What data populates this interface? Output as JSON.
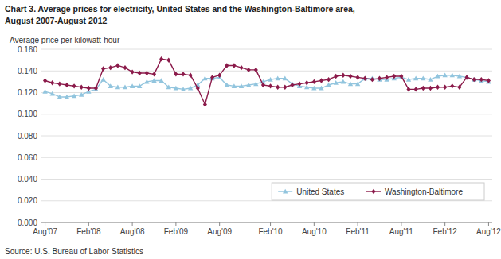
{
  "chart_data": {
    "type": "line",
    "title": "Chart 3. Average prices for electricity, United States and the Washington-Baltimore area,",
    "subtitle": "August 2007-August 2012",
    "y_label": "Average price per kilowatt-hour",
    "source": "Source: U.S. Bureau of Labor Statistics",
    "categories": [
      "Aug'07",
      null,
      null,
      null,
      null,
      null,
      "Feb'08",
      null,
      null,
      null,
      null,
      null,
      "Aug'08",
      null,
      null,
      null,
      null,
      null,
      "Feb'09",
      null,
      null,
      null,
      null,
      null,
      "Aug'09",
      null,
      null,
      null,
      null,
      null,
      null,
      "Feb'10",
      null,
      null,
      null,
      null,
      null,
      "Aug'10",
      null,
      null,
      null,
      null,
      null,
      "Feb'11",
      null,
      null,
      null,
      null,
      null,
      "Aug'11",
      null,
      null,
      null,
      null,
      null,
      "Feb'12",
      null,
      null,
      null,
      null,
      null,
      "Aug'12"
    ],
    "series": [
      {
        "name": "United States",
        "color": "#92c5de",
        "marker": "triangle",
        "values": [
          0.121,
          0.119,
          0.116,
          0.116,
          0.117,
          0.118,
          0.121,
          0.123,
          0.132,
          0.126,
          0.125,
          0.125,
          0.126,
          0.126,
          0.13,
          0.131,
          0.131,
          0.125,
          0.124,
          0.123,
          0.124,
          0.127,
          0.133,
          0.133,
          0.134,
          0.127,
          0.126,
          0.126,
          0.127,
          0.128,
          0.13,
          0.132,
          0.133,
          0.133,
          0.128,
          0.126,
          0.125,
          0.124,
          0.124,
          0.127,
          0.129,
          0.13,
          0.128,
          0.128,
          0.133,
          0.133,
          0.132,
          0.132,
          0.133,
          0.134,
          0.132,
          0.133,
          0.133,
          0.132,
          0.135,
          0.136,
          0.136,
          0.135,
          0.134,
          0.132,
          0.131,
          0.13
        ]
      },
      {
        "name": "Washington-Baltimore",
        "color": "#8b1a4a",
        "marker": "diamond",
        "values": [
          0.131,
          0.129,
          0.128,
          0.127,
          0.126,
          0.125,
          0.124,
          0.124,
          0.142,
          0.143,
          0.145,
          0.143,
          0.139,
          0.138,
          0.138,
          0.137,
          0.151,
          0.15,
          0.137,
          0.137,
          0.136,
          0.124,
          0.109,
          0.134,
          0.136,
          0.145,
          0.145,
          0.143,
          0.141,
          0.141,
          0.127,
          0.126,
          0.125,
          0.125,
          0.127,
          0.128,
          0.129,
          0.13,
          0.131,
          0.132,
          0.135,
          0.136,
          0.135,
          0.134,
          0.133,
          0.132,
          0.133,
          0.134,
          0.135,
          0.135,
          0.123,
          0.123,
          0.124,
          0.124,
          0.125,
          0.125,
          0.126,
          0.125,
          0.134,
          0.132,
          0.132,
          0.131
        ]
      }
    ],
    "ylim": [
      0.0,
      0.16
    ],
    "yticks": [
      {
        "value": 0.0,
        "label": "0.000"
      },
      {
        "value": 0.02,
        "label": "0.020"
      },
      {
        "value": 0.04,
        "label": "0.040"
      },
      {
        "value": 0.06,
        "label": "0.060"
      },
      {
        "value": 0.08,
        "label": "0.080"
      },
      {
        "value": 0.1,
        "label": "0.100"
      },
      {
        "value": 0.12,
        "label": "0.120"
      },
      {
        "value": 0.14,
        "label": "0.140"
      },
      {
        "value": 0.16,
        "label": "0.160"
      }
    ],
    "grid": true,
    "legend": "lower right"
  }
}
